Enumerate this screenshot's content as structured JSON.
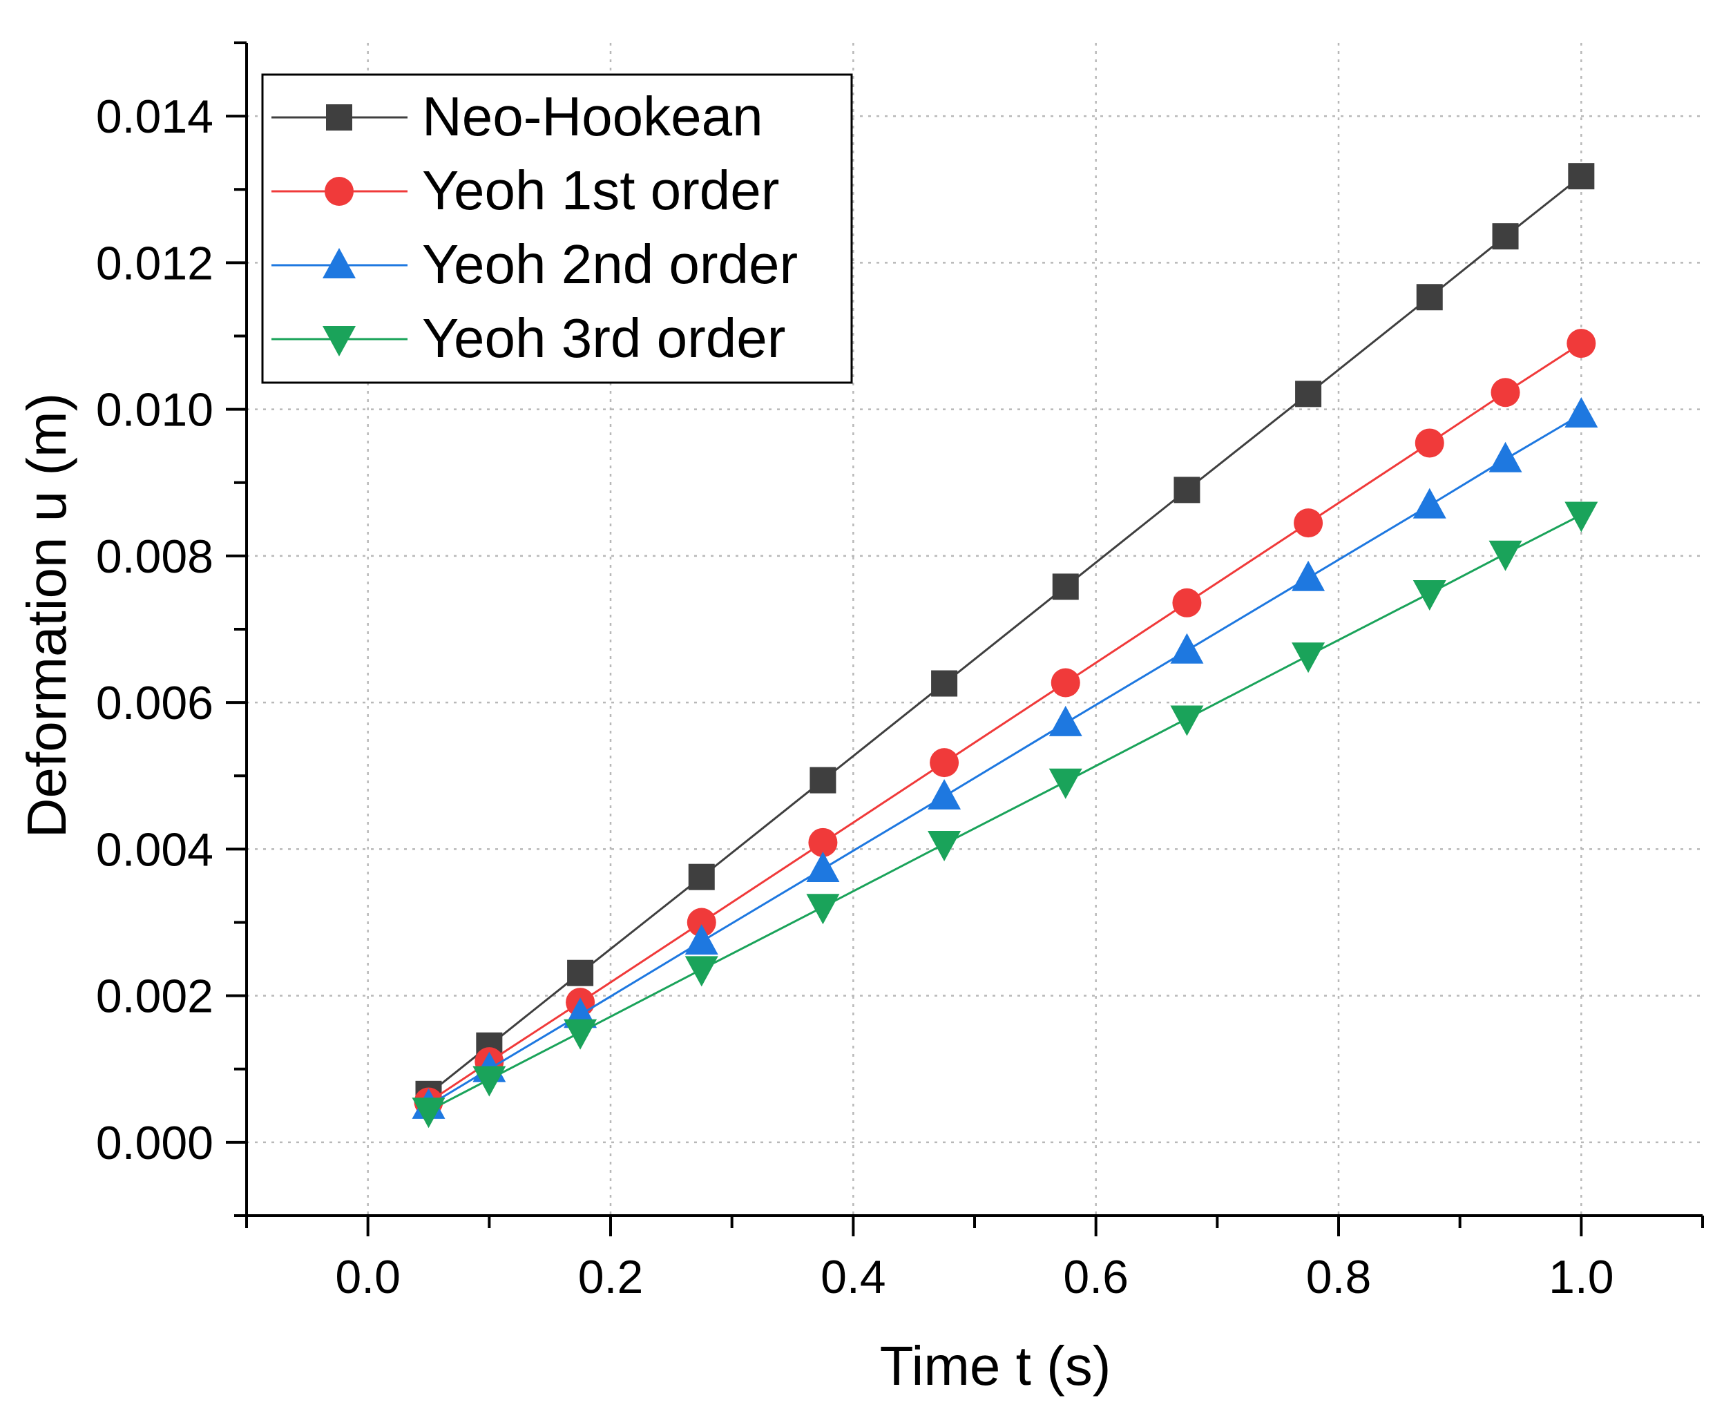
{
  "chart_data": {
    "type": "line",
    "title": "",
    "xlabel": "Time t (s)",
    "ylabel": "Deformation u (m)",
    "xlim": [
      -0.1,
      1.1
    ],
    "ylim": [
      -0.001,
      0.015
    ],
    "x_ticks": [
      {
        "value": 0.0,
        "label": "0.0"
      },
      {
        "value": 0.2,
        "label": "0.2"
      },
      {
        "value": 0.4,
        "label": "0.4"
      },
      {
        "value": 0.6,
        "label": "0.6"
      },
      {
        "value": 0.8,
        "label": "0.8"
      },
      {
        "value": 1.0,
        "label": "1.0"
      }
    ],
    "y_ticks": [
      {
        "value": 0.0,
        "label": "0.000"
      },
      {
        "value": 0.002,
        "label": "0.002"
      },
      {
        "value": 0.004,
        "label": "0.004"
      },
      {
        "value": 0.006,
        "label": "0.006"
      },
      {
        "value": 0.008,
        "label": "0.008"
      },
      {
        "value": 0.01,
        "label": "0.010"
      },
      {
        "value": 0.012,
        "label": "0.012"
      },
      {
        "value": 0.014,
        "label": "0.014"
      }
    ],
    "grid": true,
    "legend_position": "top-left",
    "x": [
      0.05,
      0.1,
      0.175,
      0.275,
      0.375,
      0.475,
      0.575,
      0.675,
      0.775,
      0.875,
      0.9375,
      1.0
    ],
    "series": [
      {
        "name": "Neo-Hookean",
        "color": "#3f3f3f",
        "marker": "square",
        "values": [
          0.00066,
          0.00132,
          0.00231,
          0.00362,
          0.00494,
          0.00626,
          0.00758,
          0.0089,
          0.01021,
          0.01153,
          0.01236,
          0.01318
        ]
      },
      {
        "name": "Yeoh 1st order",
        "color": "#f03a3a",
        "marker": "circle",
        "values": [
          0.00055,
          0.0011,
          0.00191,
          0.003,
          0.00409,
          0.00518,
          0.00627,
          0.00736,
          0.00845,
          0.00954,
          0.01023,
          0.0109
        ]
      },
      {
        "name": "Yeoh 2nd order",
        "color": "#1e78e0",
        "marker": "triangle-up",
        "values": [
          0.0005,
          0.001,
          0.00174,
          0.00274,
          0.00373,
          0.00472,
          0.00572,
          0.00671,
          0.0077,
          0.00869,
          0.00932,
          0.00993
        ]
      },
      {
        "name": "Yeoh 3rd order",
        "color": "#1aa35a",
        "marker": "triangle-down",
        "values": [
          0.00043,
          0.00086,
          0.0015,
          0.00236,
          0.00321,
          0.00407,
          0.00492,
          0.00578,
          0.00664,
          0.00749,
          0.00803,
          0.00856
        ]
      }
    ]
  }
}
